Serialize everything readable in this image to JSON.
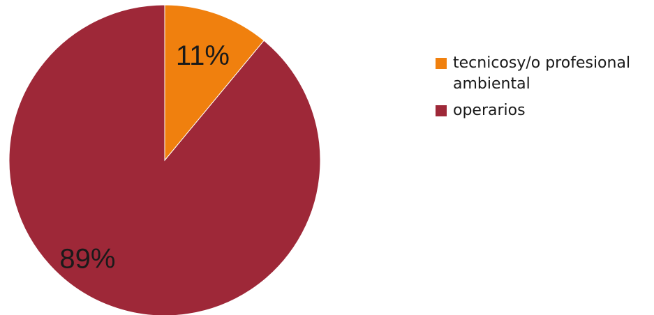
{
  "chart_data": {
    "type": "pie",
    "title": "",
    "slices": [
      {
        "label": "tecnicosy/o profesional ambiental",
        "value": 11,
        "data_label": "11%",
        "color": "#F0800E"
      },
      {
        "label": "operarios",
        "value": 89,
        "data_label": "89%",
        "color": "#9E2838"
      }
    ],
    "start_angle_deg": 0,
    "direction": "clockwise",
    "legend": {
      "position": "right",
      "items": [
        {
          "label": "tecnicosy/o profesional ambiental",
          "color": "#F0800E"
        },
        {
          "label": "operarios",
          "color": "#9E2838"
        }
      ]
    }
  }
}
